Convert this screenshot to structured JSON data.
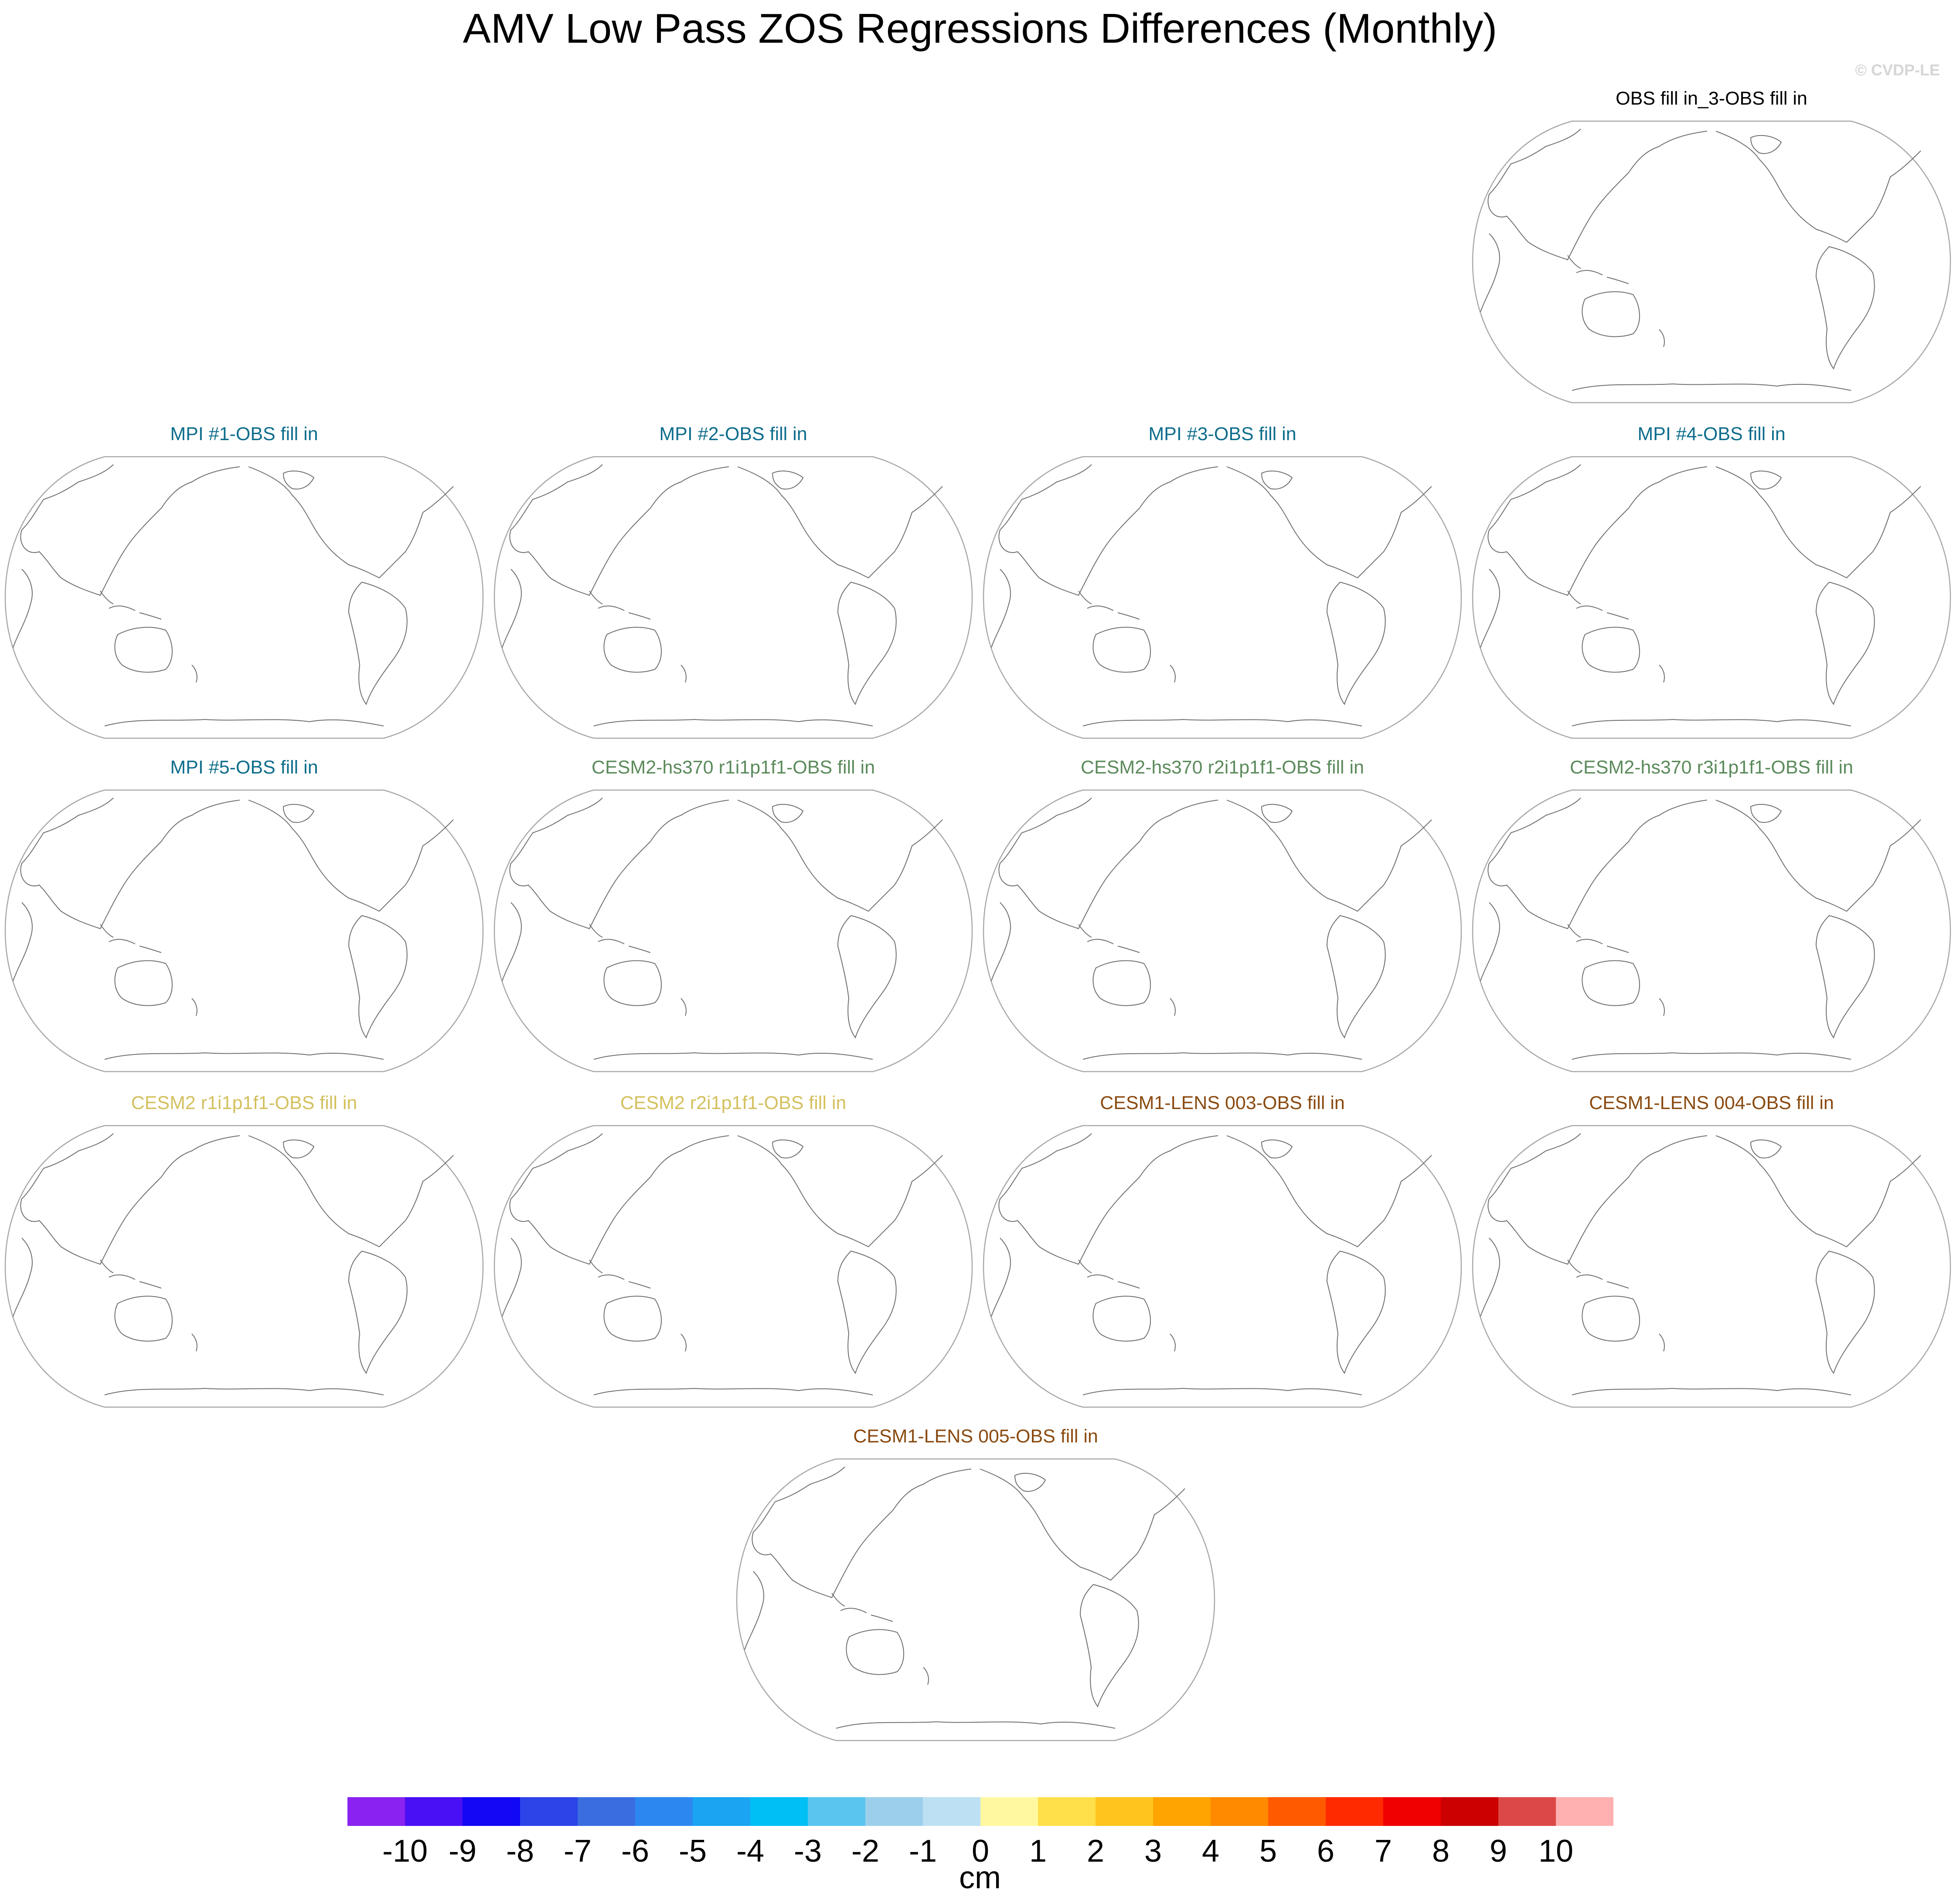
{
  "title": "AMV Low Pass ZOS Regressions Differences (Monthly)",
  "credit": "© CVDP-LE",
  "panels": [
    {
      "label": "OBS fill in_3-OBS fill in",
      "color": "#000000"
    },
    {
      "label": "MPI #1-OBS fill in",
      "color": "#0e6d8c"
    },
    {
      "label": "MPI #2-OBS fill in",
      "color": "#0e6d8c"
    },
    {
      "label": "MPI #3-OBS fill in",
      "color": "#0e6d8c"
    },
    {
      "label": "MPI #4-OBS fill in",
      "color": "#0e6d8c"
    },
    {
      "label": "MPI #5-OBS fill in",
      "color": "#0e6d8c"
    },
    {
      "label": "CESM2-hs370 r1i1p1f1-OBS fill in",
      "color": "#5b8a5b"
    },
    {
      "label": "CESM2-hs370 r2i1p1f1-OBS fill in",
      "color": "#5b8a5b"
    },
    {
      "label": "CESM2-hs370 r3i1p1f1-OBS fill in",
      "color": "#5b8a5b"
    },
    {
      "label": "CESM2 r1i1p1f1-OBS fill in",
      "color": "#d4c05e"
    },
    {
      "label": "CESM2 r2i1p1f1-OBS fill in",
      "color": "#d4c05e"
    },
    {
      "label": "CESM1-LENS 003-OBS fill in",
      "color": "#8a4a10"
    },
    {
      "label": "CESM1-LENS 004-OBS fill in",
      "color": "#8a4a10"
    },
    {
      "label": "CESM1-LENS 005-OBS fill in",
      "color": "#8a4a10"
    }
  ],
  "colorbar": {
    "units": "cm",
    "labels": [
      "-10",
      "-9",
      "-8",
      "-7",
      "-6",
      "-5",
      "-4",
      "-3",
      "-2",
      "-1",
      "0",
      "1",
      "2",
      "3",
      "4",
      "5",
      "6",
      "7",
      "8",
      "9",
      "10"
    ],
    "colors": [
      "#8a22f0",
      "#4a10f5",
      "#1208f5",
      "#2c44e8",
      "#3a6ee0",
      "#2c88f0",
      "#1aa4f2",
      "#00bff5",
      "#5ac6f0",
      "#9cd0ea",
      "#bde0f2",
      "#fff8a0",
      "#ffe04a",
      "#ffc41e",
      "#ffa400",
      "#ff8a00",
      "#ff5a00",
      "#ff2a00",
      "#f00000",
      "#cc0000",
      "#dc4848",
      "#ffb0b0"
    ]
  }
}
